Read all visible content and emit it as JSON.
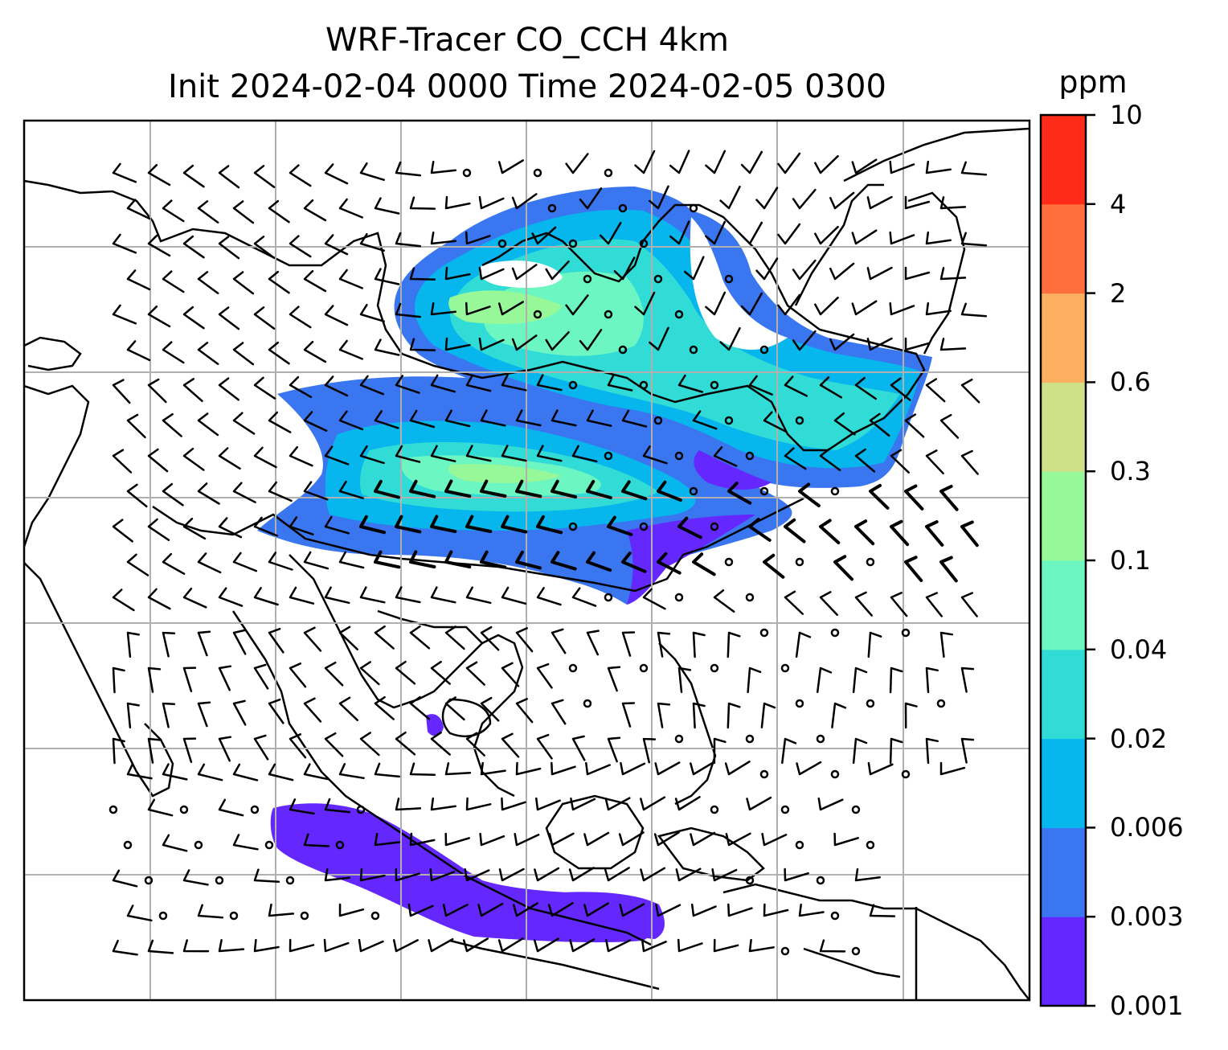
{
  "title_line1": "WRF-Tracer CO_CCH 4km",
  "title_line2": "Init 2024-02-04 0000 Time 2024-02-05 0300",
  "colorbar": {
    "unit": "ppm",
    "tick_labels": [
      "0.001",
      "0.003",
      "0.006",
      "0.02",
      "0.04",
      "0.1",
      "0.3",
      "0.6",
      "2",
      "4",
      "10"
    ],
    "colors": [
      "#6428ff",
      "#3a76f0",
      "#07b6ec",
      "#32dcd6",
      "#6cf6c2",
      "#96f898",
      "#cee189",
      "#fdaf61",
      "#ff6e3c",
      "#ff2b19"
    ]
  },
  "map": {
    "field": "CO_CCH tracer concentration",
    "wind_barbs": true,
    "gridlines": true,
    "coastlines": true
  }
}
